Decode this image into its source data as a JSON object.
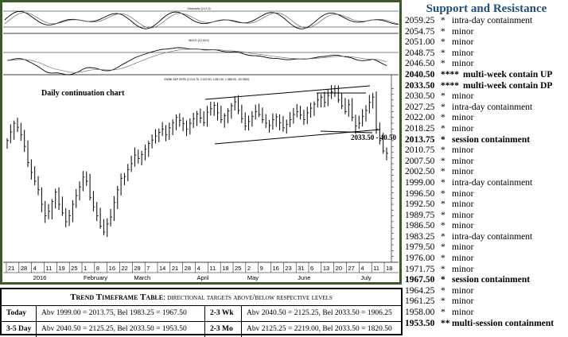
{
  "chart_panel": {
    "top_indicator_label": "Stochastic (14,3,3)",
    "macd_label": "MACD (12,26,9)",
    "symbol_label": "EMINI S&P SEP6 (2,013.75, 2,022.50, 1,981.50, 1,988.25, -30.2500)",
    "chart_title": "Daily continuation chart",
    "annotation": "2033.50 - 40.50"
  },
  "chart_data": {
    "type": "candlestick",
    "title": "Daily continuation chart",
    "x_tick_labels": [
      "21",
      "28",
      "4",
      "11",
      "19",
      "25",
      "1",
      "8",
      "16",
      "22",
      "29",
      "7",
      "14",
      "21",
      "28",
      "4",
      "11",
      "18",
      "25",
      "2",
      "9",
      "16",
      "23",
      "31",
      "6",
      "13",
      "20",
      "27",
      "4",
      "11",
      "18"
    ],
    "month_labels": [
      "2016",
      "February",
      "March",
      "April",
      "May",
      "June",
      "July"
    ],
    "ylim": [
      1804,
      2110
    ],
    "close_series": [
      2010,
      2025,
      2040,
      2033,
      2020,
      2000,
      1972,
      1955,
      1940,
      1925,
      1900,
      1880,
      1888,
      1905,
      1921,
      1900,
      1885,
      1870,
      1880,
      1900,
      1915,
      1930,
      1947,
      1940,
      1912,
      1895,
      1880,
      1862,
      1852,
      1866,
      1878,
      1903,
      1925,
      1945,
      1948,
      1960,
      1970,
      1985,
      1979,
      1986,
      1995,
      2005,
      2011,
      2018,
      2024,
      2030,
      2020,
      2032,
      2041,
      2050,
      2045,
      2039,
      2030,
      2040,
      2048,
      2056,
      2049,
      2041,
      2059,
      2065,
      2071,
      2058,
      2046,
      2053,
      2061,
      2070,
      2077,
      2062,
      2048,
      2035,
      2043,
      2052,
      2060,
      2055,
      2046,
      2040,
      2036,
      2046,
      2051,
      2041,
      2032,
      2038,
      2046,
      2055,
      2060,
      2054,
      2046,
      2058,
      2066,
      2073,
      2080,
      2085,
      2076,
      2088,
      2094,
      2092,
      2080,
      2070,
      2060,
      2072,
      2050,
      2035,
      2040,
      2052,
      2062,
      2076,
      2085,
      2030,
      2010,
      1992,
      1988
    ]
  },
  "support_resistance": {
    "title": "Support and Resistance",
    "levels": [
      {
        "level": "2059.25",
        "marker": "*",
        "desc": "intra-day containment",
        "bold": false
      },
      {
        "level": "2054.75",
        "marker": "*",
        "desc": "minor",
        "bold": false
      },
      {
        "level": "2051.00",
        "marker": "*",
        "desc": "minor",
        "bold": false
      },
      {
        "level": "2048.75",
        "marker": "*",
        "desc": "minor",
        "bold": false
      },
      {
        "level": "2046.50",
        "marker": "*",
        "desc": "minor",
        "bold": false
      },
      {
        "level": "2040.50",
        "marker": "****",
        "desc": "multi-week contain UP",
        "bold": true
      },
      {
        "level": "2033.50",
        "marker": "****",
        "desc": "multi-week contain DP",
        "bold": true
      },
      {
        "level": "2030.50",
        "marker": "*",
        "desc": "minor",
        "bold": false
      },
      {
        "level": "2027.25",
        "marker": "*",
        "desc": "intra-day containment",
        "bold": false
      },
      {
        "level": "2022.00",
        "marker": "*",
        "desc": "minor",
        "bold": false
      },
      {
        "level": "2018.25",
        "marker": "*",
        "desc": "minor",
        "bold": false
      },
      {
        "level": "2013.75",
        "marker": "*",
        "desc": "session containment",
        "bold": true
      },
      {
        "level": "2010.75",
        "marker": "*",
        "desc": "minor",
        "bold": false
      },
      {
        "level": "2007.50",
        "marker": "*",
        "desc": "minor",
        "bold": false
      },
      {
        "level": "2002.50",
        "marker": "*",
        "desc": "minor",
        "bold": false
      },
      {
        "level": "1999.00",
        "marker": "*",
        "desc": "intra-day containment",
        "bold": false
      },
      {
        "level": "1996.50",
        "marker": "*",
        "desc": "minor",
        "bold": false
      },
      {
        "level": "1992.50",
        "marker": "*",
        "desc": "minor",
        "bold": false
      },
      {
        "level": "1989.75",
        "marker": "*",
        "desc": "minor",
        "bold": false
      },
      {
        "level": "1986.50",
        "marker": "*",
        "desc": "minor",
        "bold": false
      },
      {
        "level": "1983.25",
        "marker": "*",
        "desc": "intra-day containment",
        "bold": false
      },
      {
        "level": "1979.50",
        "marker": "*",
        "desc": "minor",
        "bold": false
      },
      {
        "level": "1976.00",
        "marker": "*",
        "desc": "minor",
        "bold": false
      },
      {
        "level": "1971.75",
        "marker": "*",
        "desc": "minor",
        "bold": false
      },
      {
        "level": "1967.50",
        "marker": "*",
        "desc": "session containment",
        "bold": true
      },
      {
        "level": "1964.25",
        "marker": "*",
        "desc": "minor",
        "bold": false
      },
      {
        "level": "1961.25",
        "marker": "*",
        "desc": "minor",
        "bold": false
      },
      {
        "level": "1958.00",
        "marker": "*",
        "desc": "minor",
        "bold": false
      },
      {
        "level": "1953.50",
        "marker": "**",
        "desc": "multi-session containment",
        "bold": true
      }
    ]
  },
  "trend_table": {
    "title_bold": "Trend Timeframe Table",
    "title_rest": ": directional targets above/below respective levels",
    "rows": [
      {
        "label1": "Today",
        "value1": "Abv 1999.00 = 2013.75, Bel 1983.25 = 1967.50",
        "label2": "2-3 Wk",
        "value2": "Abv 2040.50 = 2125.25, Bel 2033.50 = 1906.25"
      },
      {
        "label1": "3-5 Day",
        "value1": "Abv 2040.50 = 2125.25, Bel 2033.50 = 1953.50",
        "label2": "2-3 Mo",
        "value2": "Abv 2125.25 = 2219.00, Bel 2033.50 = 1820.50"
      }
    ]
  },
  "colors": {
    "frame_green": "#3a5a2a",
    "title_blue": "#1f4e79"
  }
}
